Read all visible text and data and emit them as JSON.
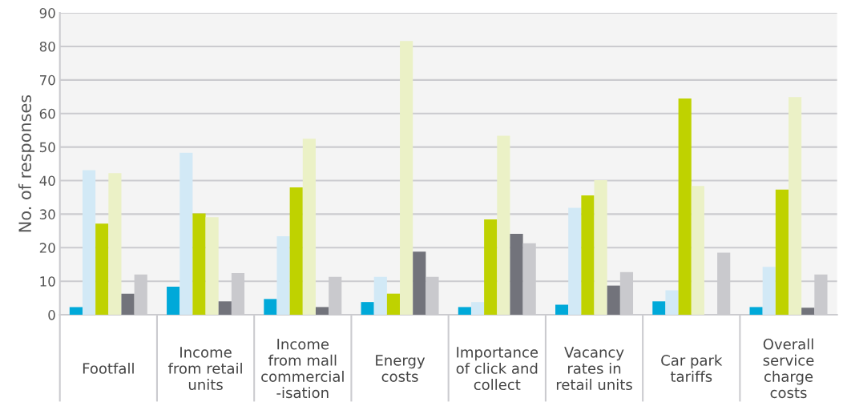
{
  "chart_data": {
    "type": "bar",
    "ylabel": "No. of responses",
    "categories": [
      "Footfall",
      "Income\nfrom retail\nunits",
      "Income\nfrom mall\ncommercial\n-isation",
      "Energy\ncosts",
      "Importance\nof click and\ncollect",
      "Vacancy\nrates in\nretail units",
      "Car park\ntariffs",
      "Overall\nservice\ncharge\ncosts"
    ],
    "series": [
      {
        "color": "#00a9d9",
        "values": [
          2.3,
          8.4,
          4.7,
          3.8,
          2.3,
          3.0,
          4.0,
          2.3
        ]
      },
      {
        "color": "#d2e9f6",
        "values": [
          43.1,
          48.3,
          23.4,
          11.3,
          3.8,
          31.9,
          7.3,
          14.3
        ]
      },
      {
        "color": "#bfd200",
        "values": [
          27.2,
          30.2,
          38.0,
          6.3,
          28.4,
          35.6,
          64.5,
          37.3
        ]
      },
      {
        "color": "#ebf1c6",
        "values": [
          42.2,
          29.1,
          52.5,
          81.6,
          53.4,
          40.1,
          38.4,
          64.9
        ]
      },
      {
        "color": "#72737b",
        "values": [
          6.3,
          4.0,
          2.3,
          18.8,
          24.1,
          8.7,
          0,
          2.1
        ]
      },
      {
        "color": "#c9c9cd",
        "values": [
          12.0,
          12.4,
          11.3,
          11.3,
          21.3,
          12.7,
          18.5,
          12.0
        ]
      }
    ],
    "ylim": [
      0,
      90
    ],
    "yticks": [
      0,
      10,
      20,
      30,
      40,
      50,
      60,
      70,
      80,
      90
    ],
    "grid": "y"
  }
}
